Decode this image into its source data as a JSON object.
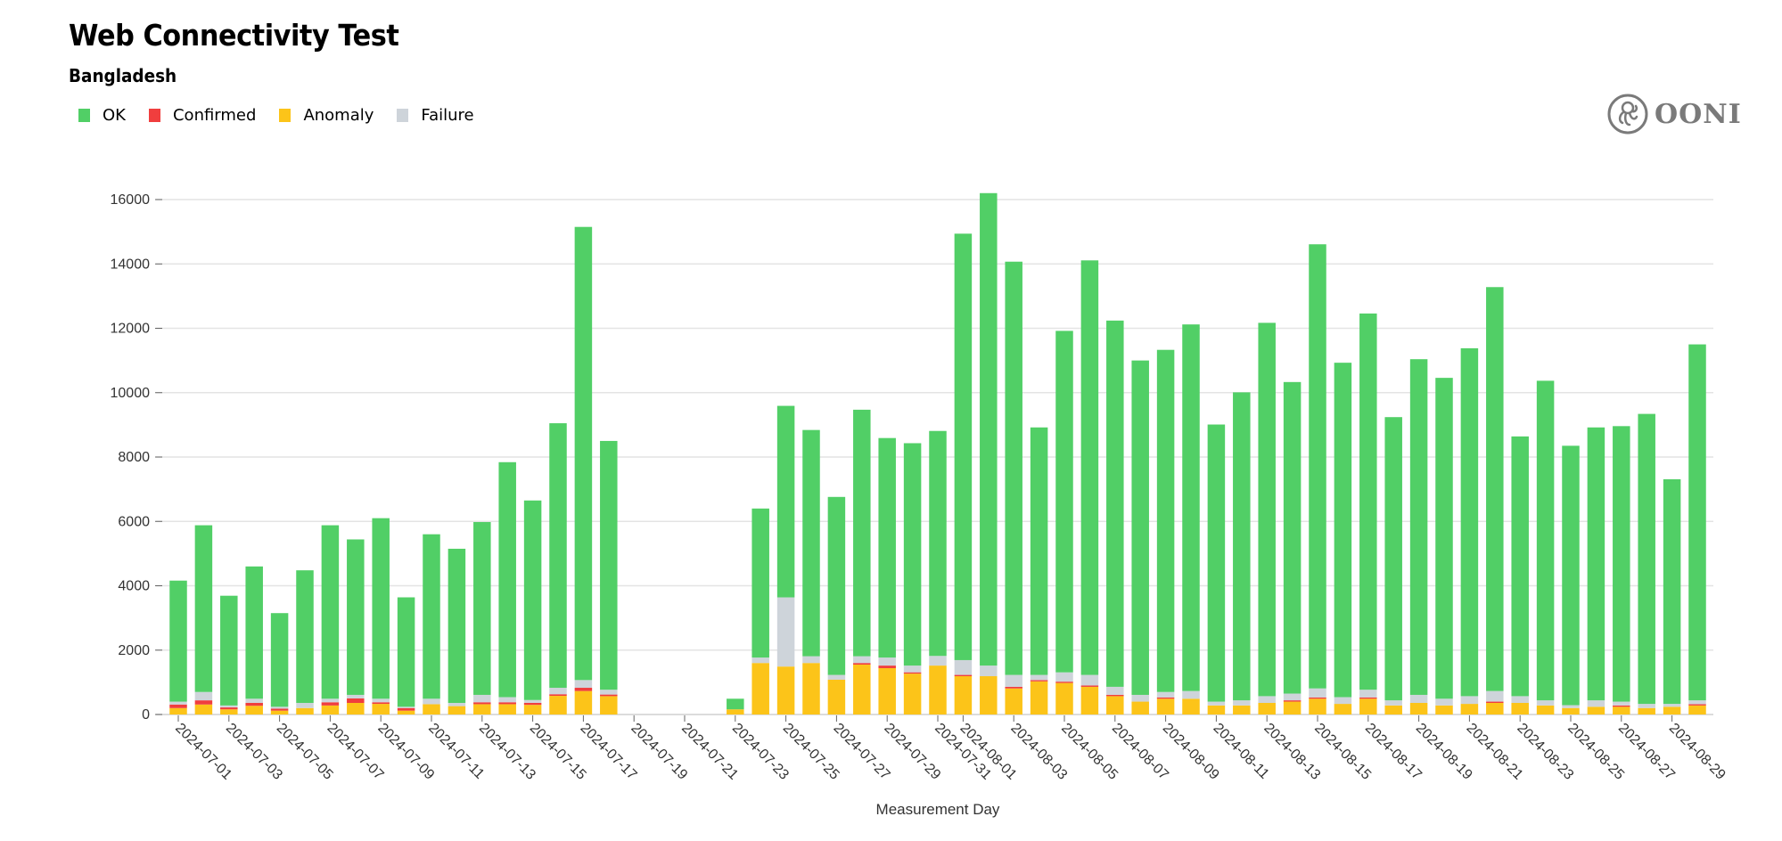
{
  "header": {
    "title": "Web Connectivity Test",
    "subtitle": "Bangladesh"
  },
  "logo": {
    "text": "OONI",
    "icon": "octopus-icon"
  },
  "legend": [
    {
      "label": "OK",
      "color": "#51cf66"
    },
    {
      "label": "Confirmed",
      "color": "#f03e3e"
    },
    {
      "label": "Anomaly",
      "color": "#fcc419"
    },
    {
      "label": "Failure",
      "color": "#ced4da"
    }
  ],
  "chart_data": {
    "type": "bar",
    "stacked": true,
    "xlabel": "Measurement Day",
    "ylabel": "",
    "ylim": [
      0,
      16000
    ],
    "y_ticks": [
      0,
      2000,
      4000,
      6000,
      8000,
      10000,
      12000,
      14000,
      16000
    ],
    "grid": true,
    "legend_position": "top-left",
    "x_tick_labels": [
      "2024-07-01",
      "2024-07-03",
      "2024-07-05",
      "2024-07-07",
      "2024-07-09",
      "2024-07-11",
      "2024-07-13",
      "2024-07-15",
      "2024-07-17",
      "2024-07-19",
      "2024-07-21",
      "2024-07-23",
      "2024-07-25",
      "2024-07-27",
      "2024-07-29",
      "2024-07-31",
      "2024-08-01",
      "2024-08-03",
      "2024-08-05",
      "2024-08-07",
      "2024-08-09",
      "2024-08-11",
      "2024-08-13",
      "2024-08-15",
      "2024-08-17",
      "2024-08-19",
      "2024-08-21",
      "2024-08-23",
      "2024-08-25",
      "2024-08-27",
      "2024-08-29"
    ],
    "categories": [
      "2024-07-01",
      "2024-07-02",
      "2024-07-03",
      "2024-07-04",
      "2024-07-05",
      "2024-07-06",
      "2024-07-07",
      "2024-07-08",
      "2024-07-09",
      "2024-07-10",
      "2024-07-11",
      "2024-07-12",
      "2024-07-13",
      "2024-07-14",
      "2024-07-15",
      "2024-07-16",
      "2024-07-17",
      "2024-07-18",
      "2024-07-19",
      "2024-07-20",
      "2024-07-21",
      "2024-07-22",
      "2024-07-23",
      "2024-07-24",
      "2024-07-25",
      "2024-07-26",
      "2024-07-27",
      "2024-07-28",
      "2024-07-29",
      "2024-07-30",
      "2024-07-31",
      "2024-08-01",
      "2024-08-02",
      "2024-08-03",
      "2024-08-04",
      "2024-08-05",
      "2024-08-06",
      "2024-08-07",
      "2024-08-08",
      "2024-08-09",
      "2024-08-10",
      "2024-08-11",
      "2024-08-12",
      "2024-08-13",
      "2024-08-14",
      "2024-08-15",
      "2024-08-16",
      "2024-08-17",
      "2024-08-18",
      "2024-08-19",
      "2024-08-20",
      "2024-08-21",
      "2024-08-22",
      "2024-08-23",
      "2024-08-24",
      "2024-08-25",
      "2024-08-26",
      "2024-08-27",
      "2024-08-28",
      "2024-08-29",
      "2024-08-30"
    ],
    "series": [
      {
        "name": "Anomaly",
        "color": "#fcc419",
        "values": [
          200,
          310,
          160,
          270,
          120,
          200,
          280,
          360,
          330,
          120,
          320,
          260,
          320,
          320,
          300,
          580,
          730,
          570,
          0,
          0,
          0,
          0,
          160,
          1600,
          1490,
          1600,
          1080,
          1550,
          1440,
          1270,
          1520,
          1190,
          1190,
          810,
          1030,
          980,
          860,
          570,
          400,
          490,
          490,
          280,
          280,
          360,
          400,
          490,
          330,
          490,
          280,
          360,
          280,
          330,
          360,
          360,
          280,
          200,
          240,
          240,
          200,
          240,
          280
        ]
      },
      {
        "name": "Confirmed",
        "color": "#f03e3e",
        "values": [
          110,
          130,
          60,
          90,
          60,
          0,
          100,
          140,
          50,
          80,
          0,
          0,
          60,
          60,
          60,
          50,
          100,
          50,
          0,
          0,
          0,
          0,
          0,
          0,
          0,
          0,
          0,
          50,
          80,
          40,
          0,
          40,
          0,
          50,
          40,
          40,
          40,
          40,
          0,
          40,
          0,
          0,
          0,
          0,
          40,
          40,
          0,
          40,
          0,
          0,
          0,
          0,
          40,
          0,
          0,
          0,
          0,
          40,
          0,
          0,
          40
        ]
      },
      {
        "name": "Failure",
        "color": "#ced4da",
        "values": [
          90,
          260,
          60,
          130,
          60,
          160,
          110,
          110,
          110,
          40,
          170,
          100,
          230,
          160,
          90,
          200,
          240,
          150,
          0,
          0,
          0,
          0,
          0,
          170,
          2150,
          210,
          150,
          210,
          250,
          210,
          300,
          460,
          330,
          370,
          160,
          290,
          330,
          250,
          210,
          170,
          240,
          120,
          160,
          210,
          210,
          280,
          210,
          240,
          160,
          250,
          210,
          240,
          330,
          210,
          160,
          90,
          200,
          120,
          130,
          90,
          120
        ]
      },
      {
        "name": "OK",
        "color": "#51cf66",
        "values": [
          3760,
          5180,
          3410,
          4110,
          2910,
          4120,
          5390,
          4830,
          5610,
          3400,
          5110,
          4790,
          5370,
          7300,
          6200,
          8220,
          14080,
          7730,
          0,
          0,
          0,
          0,
          330,
          4630,
          5950,
          7030,
          5530,
          7660,
          6820,
          6910,
          6990,
          13250,
          14680,
          12840,
          7690,
          10610,
          12880,
          11380,
          10390,
          10630,
          11390,
          8610,
          9570,
          11600,
          9680,
          13800,
          10390,
          11690,
          8800,
          10430,
          9970,
          10810,
          12550,
          8070,
          9930,
          8060,
          8480,
          8560,
          9010,
          6980,
          11060
        ]
      }
    ]
  }
}
